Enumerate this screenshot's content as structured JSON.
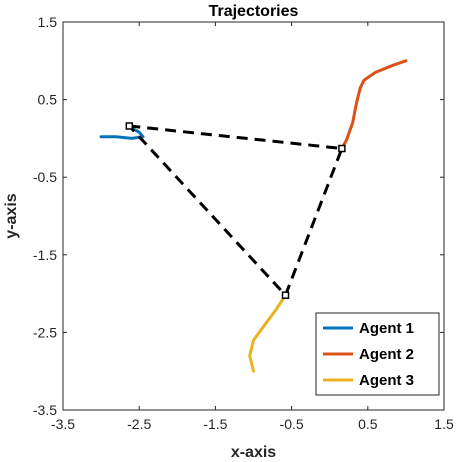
{
  "chart_data": {
    "type": "line",
    "title": "Trajectories",
    "xlabel": "x-axis",
    "ylabel": "y-axis",
    "xlim": [
      -3.5,
      1.5
    ],
    "ylim": [
      -3.5,
      1.5
    ],
    "xticks": [
      -3.5,
      -2.5,
      -1.5,
      -0.5,
      0.5,
      1.5
    ],
    "yticks": [
      -3.5,
      -2.5,
      -1.5,
      -0.5,
      0.5,
      1.5
    ],
    "tick_labels_x": [
      "-3.5",
      "-2.5",
      "-1.5",
      "-0.5",
      "0.5",
      "1.5"
    ],
    "tick_labels_y": [
      "-3.5",
      "-2.5",
      "-1.5",
      "-0.5",
      "0.5",
      "1.5"
    ],
    "grid": false,
    "legend_position": "bottom-right",
    "series": [
      {
        "name": "Agent 1",
        "color": "#0072BD",
        "x": [
          -3.0,
          -2.8,
          -2.6,
          -2.45,
          -2.5,
          -2.58,
          -2.62,
          -2.63
        ],
        "y": [
          0.02,
          0.02,
          0.0,
          0.02,
          0.08,
          0.12,
          0.14,
          0.16
        ]
      },
      {
        "name": "Agent 2",
        "color": "#D95319",
        "x": [
          1.0,
          0.85,
          0.6,
          0.45,
          0.4,
          0.35,
          0.3,
          0.22,
          0.16
        ],
        "y": [
          1.0,
          0.95,
          0.85,
          0.75,
          0.65,
          0.45,
          0.2,
          -0.02,
          -0.13
        ]
      },
      {
        "name": "Agent 3",
        "color": "#EDB120",
        "x": [
          -1.0,
          -1.05,
          -1.0,
          -0.85,
          -0.7,
          -0.58
        ],
        "y": [
          -3.0,
          -2.8,
          -2.6,
          -2.4,
          -2.2,
          -2.02
        ]
      }
    ],
    "formation": {
      "x": [
        -2.63,
        0.16,
        -0.58,
        -2.63
      ],
      "y": [
        0.16,
        -0.13,
        -2.02,
        0.16
      ],
      "style": "dashed",
      "color": "#000000"
    }
  }
}
